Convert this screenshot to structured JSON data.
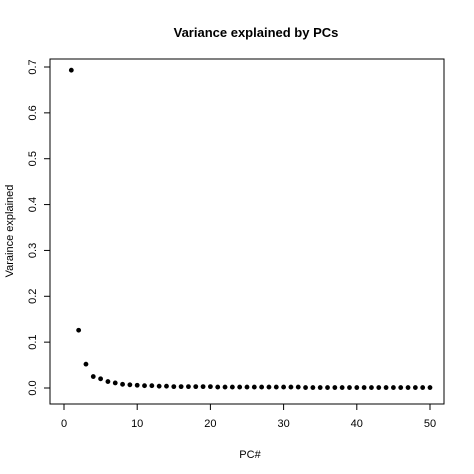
{
  "chart_data": {
    "type": "scatter",
    "title": "Variance explained by PCs",
    "xlabel": "PC#",
    "ylabel": "Varaince explained",
    "xlim": [
      0,
      50
    ],
    "ylim": [
      0,
      0.7
    ],
    "x_ticks": [
      "0",
      "10",
      "20",
      "30",
      "40",
      "50"
    ],
    "y_ticks": [
      "0.0",
      "0.1",
      "0.2",
      "0.3",
      "0.4",
      "0.5",
      "0.6",
      "0.7"
    ],
    "grid": false,
    "point_color": "#000000",
    "series": [
      {
        "x": [
          1,
          2,
          3,
          4,
          5,
          6,
          7,
          8,
          9,
          10,
          11,
          12,
          13,
          14,
          15,
          16,
          17,
          18,
          19,
          20,
          21,
          22,
          23,
          24,
          25,
          26,
          27,
          28,
          29,
          30,
          31,
          32,
          33,
          34,
          35,
          36,
          37,
          38,
          39,
          40,
          41,
          42,
          43,
          44,
          45,
          46,
          47,
          48,
          49,
          50
        ],
        "y": [
          0.693,
          0.126,
          0.052,
          0.025,
          0.02,
          0.014,
          0.011,
          0.008,
          0.007,
          0.006,
          0.005,
          0.005,
          0.004,
          0.004,
          0.003,
          0.003,
          0.003,
          0.003,
          0.003,
          0.003,
          0.002,
          0.002,
          0.002,
          0.002,
          0.002,
          0.002,
          0.002,
          0.002,
          0.002,
          0.002,
          0.002,
          0.002,
          0.001,
          0.001,
          0.001,
          0.001,
          0.001,
          0.001,
          0.001,
          0.001,
          0.001,
          0.001,
          0.001,
          0.001,
          0.001,
          0.001,
          0.001,
          0.001,
          0.001,
          0.001
        ]
      }
    ]
  }
}
